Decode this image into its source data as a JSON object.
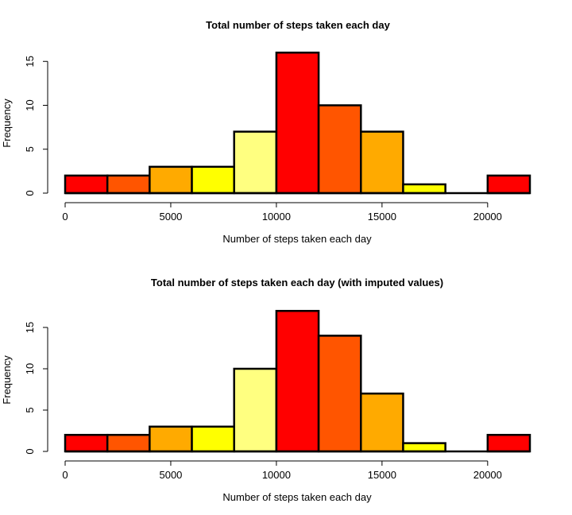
{
  "chart_data": [
    {
      "type": "bar",
      "title": "Total number of steps taken each day",
      "xlabel": "Number of steps taken each day",
      "ylabel": "Frequency",
      "bin_edges": [
        0,
        2000,
        4000,
        6000,
        8000,
        10000,
        12000,
        14000,
        16000,
        18000,
        20000,
        22000
      ],
      "values": [
        2,
        2,
        3,
        3,
        7,
        16,
        10,
        7,
        1,
        0,
        2
      ],
      "bar_colors": [
        "#FF0000",
        "#FF5500",
        "#FFAA00",
        "#FFFF00",
        "#FFFF80",
        "#FF0000",
        "#FF5500",
        "#FFAA00",
        "#FFFF00",
        "#FFFF80",
        "#FF0000"
      ],
      "xlim": [
        0,
        22000
      ],
      "ylim": [
        0,
        16
      ],
      "x_ticks": [
        0,
        5000,
        10000,
        15000,
        20000
      ],
      "x_tick_labels": [
        "0",
        "5000",
        "10000",
        "15000",
        "20000"
      ],
      "y_ticks": [
        0,
        5,
        10,
        15
      ],
      "y_tick_labels": [
        "0",
        "5",
        "10",
        "15"
      ],
      "grid": false,
      "legend": false
    },
    {
      "type": "bar",
      "title": "Total number of steps taken each day (with imputed values)",
      "xlabel": "Number of steps taken each day",
      "ylabel": "Frequency",
      "bin_edges": [
        0,
        2000,
        4000,
        6000,
        8000,
        10000,
        12000,
        14000,
        16000,
        18000,
        20000,
        22000
      ],
      "values": [
        2,
        2,
        3,
        3,
        10,
        17,
        14,
        7,
        1,
        0,
        2
      ],
      "bar_colors": [
        "#FF0000",
        "#FF5500",
        "#FFAA00",
        "#FFFF00",
        "#FFFF80",
        "#FF0000",
        "#FF5500",
        "#FFAA00",
        "#FFFF00",
        "#FFFF80",
        "#FF0000"
      ],
      "xlim": [
        0,
        22000
      ],
      "ylim": [
        0,
        17
      ],
      "x_ticks": [
        0,
        5000,
        10000,
        15000,
        20000
      ],
      "x_tick_labels": [
        "0",
        "5000",
        "10000",
        "15000",
        "20000"
      ],
      "y_ticks": [
        0,
        5,
        10,
        15
      ],
      "y_tick_labels": [
        "0",
        "5",
        "10",
        "15"
      ],
      "grid": false,
      "legend": false
    }
  ]
}
